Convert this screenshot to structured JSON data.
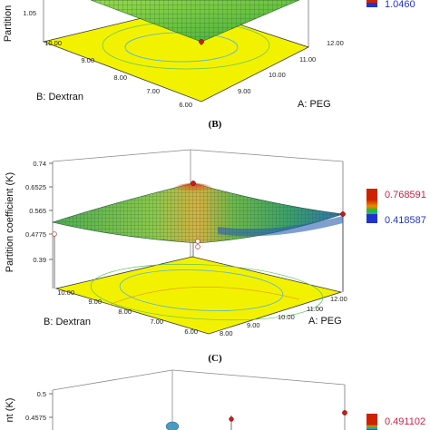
{
  "chart_data": [
    {
      "type": "surface",
      "panel_label": "",
      "zlabel": "Partition",
      "z_ticks": [
        "1.05"
      ],
      "x_axis": {
        "label": "A: PEG",
        "ticks": [
          "12.00",
          "11.00",
          "10.00",
          "9.00"
        ]
      },
      "y_axis": {
        "label": "B: Dextran",
        "ticks": [
          "10.00",
          "9.00",
          "8.00",
          "7.00",
          "6.00"
        ]
      },
      "legend": {
        "high": "",
        "low": "1.0460",
        "high_color": "#cc2200",
        "low_color": "#2233cc"
      }
    },
    {
      "type": "surface",
      "panel_label": "(B)",
      "zlabel": "Partition coefficient (K)",
      "z_ticks": [
        "0.74",
        "0.6525",
        "0.565",
        "0.4775",
        "0.39"
      ],
      "x_axis": {
        "label": "A: PEG",
        "ticks": [
          "12.00",
          "11.00",
          "10.00",
          "9.00",
          "8.00"
        ]
      },
      "y_axis": {
        "label": "B: Dextran",
        "ticks": [
          "10.00",
          "9.00",
          "8.00",
          "7.00",
          "6.00"
        ]
      },
      "legend": {
        "high": "0.768591",
        "low": "0.418587",
        "high_color": "#cc2200",
        "low_color": "#2233cc"
      }
    },
    {
      "type": "surface",
      "panel_label": "(C)",
      "zlabel": "nt (K)",
      "z_ticks": [
        "0.5",
        "0.4575"
      ],
      "x_axis": {
        "label": "",
        "ticks": []
      },
      "y_axis": {
        "label": "",
        "ticks": []
      },
      "legend": {
        "high": "0.491102",
        "low": "",
        "high_color": "#cc2200",
        "low_color": "#2233cc"
      }
    }
  ]
}
